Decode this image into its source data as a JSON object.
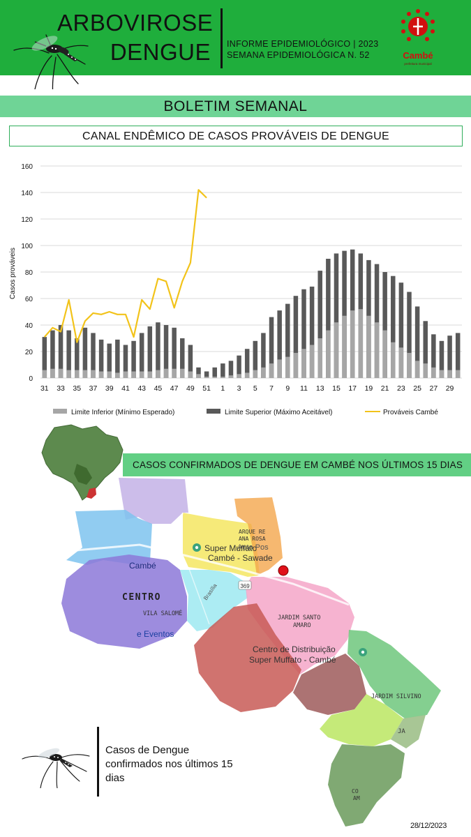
{
  "header": {
    "title_line1": "ARBOVIROSE",
    "title_line2": "DENGUE",
    "subtitle_line1": "INFORME EPIDEMIOLÓGICO | 2023",
    "subtitle_line2": "SEMANA EPIDEMIOLÓGICA  N. 52",
    "logo_text": "Cambé",
    "logo_tagline": "prefeitura municipal",
    "brand_green": "#1fae3c",
    "logo_red": "#d10f0f"
  },
  "banner": {
    "label": "BOLETIM SEMANAL",
    "color": "#6fd496"
  },
  "chart_box": {
    "label": "CANAL ENDÊMICO DE CASOS PROVÁVEIS DE DENGUE"
  },
  "chart_data": {
    "type": "bar",
    "title": "CANAL ENDÊMICO DE CASOS PROVÁVEIS DE DENGUE",
    "xlabel": "",
    "ylabel": "Casos prováveis",
    "ylim": [
      0,
      160
    ],
    "yticks": [
      0,
      20,
      40,
      60,
      80,
      100,
      120,
      140,
      160
    ],
    "grid": true,
    "legend_position": "bottom",
    "x_tick_labels": [
      "31",
      "33",
      "35",
      "37",
      "39",
      "41",
      "43",
      "45",
      "47",
      "49",
      "51",
      "1",
      "3",
      "5",
      "7",
      "9",
      "11",
      "13",
      "15",
      "17",
      "19",
      "21",
      "23",
      "25",
      "27",
      "29"
    ],
    "categories": [
      "31",
      "32",
      "33",
      "34",
      "35",
      "36",
      "37",
      "38",
      "39",
      "40",
      "41",
      "42",
      "43",
      "44",
      "45",
      "46",
      "47",
      "48",
      "49",
      "50",
      "51",
      "52",
      "1",
      "2",
      "3",
      "4",
      "5",
      "6",
      "7",
      "8",
      "9",
      "10",
      "11",
      "12",
      "13",
      "14",
      "15",
      "16",
      "17",
      "18",
      "19",
      "20",
      "21",
      "22",
      "23",
      "24",
      "25",
      "26",
      "27",
      "28",
      "29",
      "30"
    ],
    "series": [
      {
        "name": "Limite Inferior (Mínimo Esperado)",
        "kind": "bar",
        "color": "#a6a6a6",
        "values": [
          6,
          7,
          7,
          6,
          6,
          6,
          6,
          5,
          5,
          4,
          5,
          5,
          5,
          5,
          6,
          7,
          7,
          7,
          5,
          3,
          1,
          1,
          1,
          2,
          3,
          4,
          6,
          8,
          11,
          14,
          16,
          19,
          22,
          25,
          30,
          36,
          42,
          47,
          51,
          52,
          47,
          42,
          36,
          27,
          23,
          19,
          13,
          11,
          8,
          6,
          6,
          6
        ]
      },
      {
        "name": "Limite Superior (Máximo Aceitável)",
        "kind": "bar",
        "color": "#595959",
        "values": [
          31,
          36,
          40,
          36,
          30,
          38,
          34,
          29,
          26,
          29,
          25,
          28,
          34,
          39,
          42,
          40,
          38,
          30,
          25,
          8,
          5,
          8,
          11,
          13,
          17,
          22,
          28,
          34,
          46,
          51,
          56,
          62,
          67,
          69,
          81,
          90,
          94,
          96,
          97,
          94,
          89,
          86,
          80,
          77,
          72,
          65,
          54,
          43,
          33,
          28,
          32,
          34
        ]
      },
      {
        "name": "Prováveis Cambé",
        "kind": "line",
        "color": "#f2c31a",
        "values": [
          31,
          38,
          35,
          59,
          27,
          43,
          49,
          48,
          50,
          48,
          48,
          31,
          59,
          52,
          75,
          73,
          53,
          73,
          87,
          142,
          136,
          null,
          null,
          null,
          null,
          null,
          null,
          null,
          null,
          null,
          null,
          null,
          null,
          null,
          null,
          null,
          null,
          null,
          null,
          null,
          null,
          null,
          null,
          null,
          null,
          null,
          null,
          null,
          null,
          null,
          null,
          null
        ]
      }
    ]
  },
  "map": {
    "title": "CASOS CONFIRMADOS DE DENGUE EM CAMBÉ NOS ÚLTIMOS 15 DIAS",
    "labels": {
      "cambe": "Cambé",
      "centro": "CENTRO",
      "vila_salome": "VILA SALOMÉ",
      "eventos": "e Eventos",
      "super_muffato": "Super Muffato",
      "super_muffato_2": "Cambé - Sawade",
      "parque_line1": "ARQUE RE",
      "parque_line2": "ANA ROSA",
      "auto_pos": "Auto Pos",
      "jardim_santo_line1": "JARDIM SANTO",
      "jardim_santo_line2": "AMARO",
      "centro_dist_line1": "Centro de Distribuição",
      "centro_dist_line2": "Super Muffato - Cambé",
      "jardim_silvino": "JARDIM SILVINO",
      "road": "369",
      "brasilia": "Brasília",
      "ja": "JA",
      "co": "CO",
      "am": "AM"
    },
    "case_marker_color": "#e0101a"
  },
  "caption": "Casos de Dengue confirmados nos últimos 15 dias",
  "date": "28/12/2023"
}
